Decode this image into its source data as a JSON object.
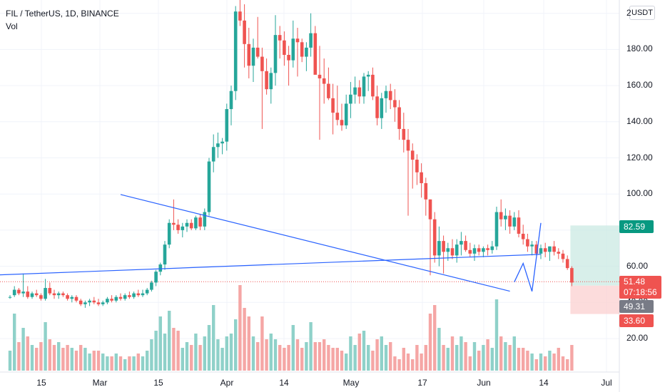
{
  "legend": {
    "symbol": "FIL / TetherUS, 1D, BINANCE",
    "volume_label": "Vol"
  },
  "currency_button": "USDT",
  "colors": {
    "up": "#26a69a",
    "down": "#ef5350",
    "up_vol": "#8fd1c9",
    "down_vol": "#f5a6a5",
    "trendline": "#2962ff",
    "profit_zone": "#cbe9e3",
    "loss_zone": "#fbd0d0",
    "last_price": "#ef5350",
    "grid": "#f0f3fa"
  },
  "price_labels": {
    "target": "82.59",
    "last": "51.48",
    "countdown": "07:18:56",
    "entry": "49.31",
    "stop": "33.60"
  },
  "chart_data": {
    "type": "candlestick",
    "title": "FIL / TetherUS, 1D, BINANCE",
    "y_axis": {
      "ticks": [
        "20.00",
        "40.00",
        "60.00",
        "80.00",
        "100.00",
        "120.00",
        "140.00",
        "160.00",
        "180.00",
        "2"
      ],
      "visible_range": [
        10,
        213
      ]
    },
    "x_axis": {
      "ticks": [
        "15",
        "Mar",
        "15",
        "Apr",
        "14",
        "May",
        "17",
        "Jun",
        "14",
        "Jul"
      ]
    },
    "grid": true,
    "candles_ohlc": [
      [
        43,
        44,
        42,
        43
      ],
      [
        44,
        49,
        43,
        47
      ],
      [
        47,
        48,
        44,
        45
      ],
      [
        45,
        56,
        43,
        46
      ],
      [
        46,
        49,
        42,
        43
      ],
      [
        43,
        46,
        42,
        45
      ],
      [
        45,
        47,
        43,
        44
      ],
      [
        44,
        45,
        41,
        42
      ],
      [
        42,
        53,
        41,
        48
      ],
      [
        48,
        51,
        44,
        45
      ],
      [
        45,
        47,
        42,
        44
      ],
      [
        44,
        46,
        42,
        45
      ],
      [
        45,
        46,
        43,
        44
      ],
      [
        44,
        45,
        41,
        42
      ],
      [
        42,
        44,
        40,
        43
      ],
      [
        43,
        44,
        40,
        41
      ],
      [
        41,
        42,
        38,
        39
      ],
      [
        39,
        41,
        37,
        40
      ],
      [
        40,
        42,
        38,
        41
      ],
      [
        41,
        43,
        39,
        40
      ],
      [
        40,
        42,
        38,
        39
      ],
      [
        39,
        41,
        38,
        40
      ],
      [
        40,
        43,
        39,
        42
      ],
      [
        42,
        44,
        40,
        41
      ],
      [
        41,
        44,
        40,
        43
      ],
      [
        43,
        45,
        41,
        42
      ],
      [
        42,
        45,
        41,
        44
      ],
      [
        44,
        46,
        42,
        43
      ],
      [
        43,
        46,
        42,
        45
      ],
      [
        45,
        47,
        43,
        44
      ],
      [
        44,
        47,
        43,
        45
      ],
      [
        45,
        48,
        44,
        47
      ],
      [
        47,
        52,
        46,
        51
      ],
      [
        51,
        58,
        49,
        57
      ],
      [
        57,
        62,
        55,
        61
      ],
      [
        61,
        74,
        58,
        72
      ],
      [
        72,
        86,
        70,
        84
      ],
      [
        84,
        97,
        80,
        83
      ],
      [
        83,
        86,
        78,
        80
      ],
      [
        80,
        84,
        76,
        82
      ],
      [
        82,
        86,
        79,
        84
      ],
      [
        84,
        86,
        80,
        81
      ],
      [
        81,
        88,
        80,
        87
      ],
      [
        87,
        89,
        80,
        82
      ],
      [
        82,
        92,
        80,
        90
      ],
      [
        90,
        120,
        88,
        118
      ],
      [
        118,
        133,
        112,
        126
      ],
      [
        126,
        134,
        120,
        128
      ],
      [
        128,
        131,
        122,
        129
      ],
      [
        129,
        150,
        124,
        147
      ],
      [
        147,
        160,
        138,
        157
      ],
      [
        157,
        204,
        152,
        201
      ],
      [
        201,
        217,
        193,
        196
      ],
      [
        196,
        205,
        170,
        183
      ],
      [
        183,
        192,
        164,
        171
      ],
      [
        171,
        186,
        162,
        181
      ],
      [
        181,
        198,
        175,
        176
      ],
      [
        176,
        181,
        136,
        168
      ],
      [
        168,
        175,
        155,
        158
      ],
      [
        158,
        170,
        150,
        167
      ],
      [
        167,
        199,
        160,
        188
      ],
      [
        188,
        193,
        175,
        185
      ],
      [
        185,
        190,
        171,
        177
      ],
      [
        177,
        182,
        160,
        174
      ],
      [
        174,
        196,
        170,
        186
      ],
      [
        186,
        192,
        165,
        184
      ],
      [
        184,
        186,
        173,
        176
      ],
      [
        176,
        184,
        168,
        181
      ],
      [
        181,
        200,
        176,
        189
      ],
      [
        189,
        193,
        174,
        166
      ],
      [
        166,
        182,
        130,
        164
      ],
      [
        164,
        175,
        150,
        161
      ],
      [
        161,
        170,
        152,
        153
      ],
      [
        153,
        161,
        133,
        145
      ],
      [
        145,
        160,
        138,
        141
      ],
      [
        141,
        150,
        135,
        138
      ],
      [
        138,
        155,
        136,
        150
      ],
      [
        150,
        162,
        142,
        155
      ],
      [
        155,
        165,
        150,
        159
      ],
      [
        159,
        163,
        150,
        154
      ],
      [
        154,
        167,
        150,
        165
      ],
      [
        165,
        168,
        157,
        166
      ],
      [
        166,
        170,
        152,
        154
      ],
      [
        154,
        160,
        138,
        142
      ],
      [
        142,
        156,
        136,
        153
      ],
      [
        153,
        160,
        145,
        157
      ],
      [
        157,
        161,
        147,
        152
      ],
      [
        152,
        158,
        140,
        148
      ],
      [
        148,
        152,
        130,
        136
      ],
      [
        136,
        145,
        123,
        130
      ],
      [
        130,
        136,
        88,
        124
      ],
      [
        124,
        128,
        103,
        119
      ],
      [
        119,
        122,
        105,
        112
      ],
      [
        112,
        117,
        98,
        106
      ],
      [
        106,
        109,
        88,
        97
      ],
      [
        97,
        97,
        55,
        86
      ],
      [
        86,
        90,
        62,
        66
      ],
      [
        66,
        82,
        60,
        74
      ],
      [
        74,
        77,
        56,
        68
      ],
      [
        68,
        73,
        63,
        70
      ],
      [
        70,
        75,
        64,
        66
      ],
      [
        66,
        75,
        62,
        72
      ],
      [
        72,
        79,
        66,
        74
      ],
      [
        74,
        77,
        68,
        69
      ],
      [
        69,
        73,
        65,
        67
      ],
      [
        67,
        72,
        63,
        70
      ],
      [
        70,
        72,
        66,
        68
      ],
      [
        68,
        71,
        65,
        70
      ],
      [
        70,
        72,
        66,
        69
      ],
      [
        69,
        74,
        67,
        71
      ],
      [
        71,
        93,
        69,
        90
      ],
      [
        90,
        97,
        82,
        86
      ],
      [
        86,
        92,
        80,
        88
      ],
      [
        88,
        91,
        78,
        82
      ],
      [
        82,
        90,
        80,
        87
      ],
      [
        87,
        91,
        76,
        78
      ],
      [
        78,
        83,
        72,
        75
      ],
      [
        75,
        78,
        68,
        71
      ],
      [
        71,
        74,
        66,
        72
      ],
      [
        72,
        74,
        66,
        67
      ],
      [
        67,
        72,
        64,
        70
      ],
      [
        70,
        73,
        65,
        68
      ],
      [
        68,
        71,
        63,
        71
      ],
      [
        71,
        74,
        66,
        68
      ],
      [
        68,
        70,
        64,
        67
      ],
      [
        67,
        69,
        62,
        64
      ],
      [
        64,
        66,
        58,
        59
      ],
      [
        59,
        60,
        49,
        51
      ]
    ],
    "volumes": [
      7,
      20,
      10,
      15,
      12,
      9,
      8,
      10,
      17,
      11,
      9,
      10,
      8,
      9,
      8,
      7,
      9,
      8,
      6,
      7,
      7,
      6,
      5,
      5,
      6,
      5,
      4,
      5,
      5,
      6,
      5,
      7,
      11,
      14,
      19,
      13,
      21,
      15,
      14,
      8,
      10,
      9,
      13,
      9,
      12,
      16,
      23,
      11,
      8,
      12,
      13,
      18,
      30,
      22,
      19,
      12,
      10,
      19,
      11,
      13,
      11,
      9,
      8,
      9,
      16,
      11,
      8,
      10,
      17,
      10,
      10,
      11,
      9,
      8,
      8,
      7,
      6,
      12,
      9,
      13,
      14,
      9,
      7,
      11,
      12,
      9,
      10,
      5,
      4,
      8,
      6,
      4,
      9,
      6,
      9,
      20,
      23,
      15,
      9,
      8,
      12,
      9,
      12,
      10,
      5,
      10,
      7,
      9,
      11,
      8,
      25,
      12,
      10,
      9,
      12,
      8,
      8,
      7,
      6,
      4,
      6,
      5,
      7,
      6,
      8,
      5,
      4,
      9
    ],
    "trendlines": [
      {
        "points": [
          [
            -6,
            54.9
          ],
          [
            120,
            66.6
          ]
        ]
      },
      {
        "points": [
          [
            25,
            99.7
          ],
          [
            113,
            46.2
          ]
        ]
      }
    ],
    "projection_path": [
      [
        114,
        51.3
      ],
      [
        116,
        61.6
      ],
      [
        118,
        46.1
      ],
      [
        120,
        84.0
      ]
    ],
    "position": {
      "entry": 49.31,
      "target": 82.59,
      "stop": 33.6,
      "last": 51.48
    }
  }
}
